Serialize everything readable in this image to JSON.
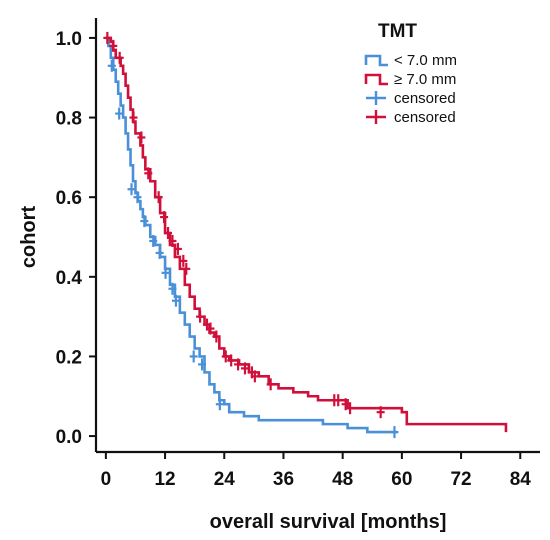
{
  "chart_data": {
    "type": "line",
    "subtype": "kaplan-meier",
    "xlabel": "overall survival [months]",
    "ylabel": "cohort",
    "xlim": [
      -2,
      88
    ],
    "ylim": [
      -0.04,
      1.04
    ],
    "xticks": [
      0,
      12,
      24,
      36,
      48,
      60,
      72,
      84
    ],
    "yticks": [
      0.0,
      0.2,
      0.4,
      0.6,
      0.8,
      1.0
    ],
    "xtick_labels": [
      "0",
      "12",
      "24",
      "36",
      "48",
      "60",
      "72",
      "84"
    ],
    "ytick_labels": [
      "0.0",
      "0.2",
      "0.4",
      "0.6",
      "0.8",
      "1.0"
    ],
    "grid": false,
    "legend": {
      "title": "TMT",
      "position": "top-right",
      "entries": [
        {
          "label": "< 7.0 mm",
          "color": "#4a90d9",
          "kind": "line"
        },
        {
          "label": "≥ 7.0 mm",
          "color": "#d0103a",
          "kind": "line"
        },
        {
          "label": "censored",
          "color": "#4a90d9",
          "kind": "marker"
        },
        {
          "label": "censored",
          "color": "#d0103a",
          "kind": "marker"
        }
      ]
    },
    "series": [
      {
        "name": "< 7.0 mm",
        "color": "#4a90d9",
        "steps": [
          [
            0,
            1.0
          ],
          [
            0.5,
            0.98
          ],
          [
            1,
            0.95
          ],
          [
            1.5,
            0.92
          ],
          [
            2,
            0.89
          ],
          [
            2.5,
            0.86
          ],
          [
            3,
            0.83
          ],
          [
            3.5,
            0.8
          ],
          [
            4,
            0.76
          ],
          [
            4.5,
            0.72
          ],
          [
            5,
            0.68
          ],
          [
            5.5,
            0.64
          ],
          [
            6,
            0.61
          ],
          [
            6.5,
            0.59
          ],
          [
            7,
            0.57
          ],
          [
            7.5,
            0.55
          ],
          [
            8,
            0.53
          ],
          [
            9,
            0.5
          ],
          [
            10,
            0.48
          ],
          [
            11,
            0.45
          ],
          [
            12,
            0.42
          ],
          [
            13,
            0.38
          ],
          [
            14,
            0.35
          ],
          [
            15,
            0.31
          ],
          [
            16,
            0.28
          ],
          [
            17,
            0.25
          ],
          [
            18,
            0.22
          ],
          [
            19,
            0.2
          ],
          [
            20,
            0.16
          ],
          [
            21,
            0.13
          ],
          [
            22,
            0.11
          ],
          [
            23,
            0.09
          ],
          [
            24,
            0.08
          ],
          [
            25,
            0.06
          ],
          [
            28,
            0.05
          ],
          [
            31,
            0.04
          ],
          [
            37,
            0.04
          ],
          [
            44,
            0.03
          ],
          [
            49,
            0.02
          ],
          [
            53,
            0.01
          ],
          [
            59,
            0.01
          ]
        ],
        "censored": [
          [
            1.2,
            0.93
          ],
          [
            2.7,
            0.81
          ],
          [
            5.2,
            0.62
          ],
          [
            6.4,
            0.6
          ],
          [
            7.8,
            0.54
          ],
          [
            9.6,
            0.49
          ],
          [
            10.9,
            0.46
          ],
          [
            12.1,
            0.41
          ],
          [
            13.5,
            0.37
          ],
          [
            14.2,
            0.34
          ],
          [
            17.8,
            0.2
          ],
          [
            19.5,
            0.18
          ],
          [
            23.1,
            0.08
          ],
          [
            58.5,
            0.01
          ]
        ]
      },
      {
        "name": "≥ 7.0 mm",
        "color": "#d0103a",
        "steps": [
          [
            0,
            1.0
          ],
          [
            1,
            0.99
          ],
          [
            1.5,
            0.97
          ],
          [
            2,
            0.95
          ],
          [
            3,
            0.93
          ],
          [
            3.5,
            0.91
          ],
          [
            4,
            0.88
          ],
          [
            4.5,
            0.85
          ],
          [
            5,
            0.82
          ],
          [
            5.5,
            0.79
          ],
          [
            6,
            0.76
          ],
          [
            7,
            0.73
          ],
          [
            7.5,
            0.7
          ],
          [
            8,
            0.67
          ],
          [
            9,
            0.64
          ],
          [
            10,
            0.6
          ],
          [
            11,
            0.56
          ],
          [
            12,
            0.51
          ],
          [
            13,
            0.48
          ],
          [
            14,
            0.45
          ],
          [
            15,
            0.42
          ],
          [
            16,
            0.38
          ],
          [
            17,
            0.35
          ],
          [
            18,
            0.32
          ],
          [
            19,
            0.3
          ],
          [
            20,
            0.28
          ],
          [
            21,
            0.26
          ],
          [
            22,
            0.25
          ],
          [
            23,
            0.22
          ],
          [
            24,
            0.2
          ],
          [
            25,
            0.19
          ],
          [
            27,
            0.18
          ],
          [
            29,
            0.16
          ],
          [
            31,
            0.15
          ],
          [
            33,
            0.13
          ],
          [
            35,
            0.12
          ],
          [
            38,
            0.11
          ],
          [
            41,
            0.1
          ],
          [
            43,
            0.09
          ],
          [
            47,
            0.09
          ],
          [
            49,
            0.07
          ],
          [
            60,
            0.06
          ],
          [
            61,
            0.03
          ],
          [
            70,
            0.03
          ],
          [
            81,
            0.03
          ],
          [
            81.1,
            0.01
          ]
        ],
        "censored": [
          [
            0.3,
            1.0
          ],
          [
            1.5,
            0.98
          ],
          [
            2.8,
            0.95
          ],
          [
            5.6,
            0.8
          ],
          [
            7.2,
            0.75
          ],
          [
            8.6,
            0.66
          ],
          [
            10.7,
            0.6
          ],
          [
            11.8,
            0.55
          ],
          [
            12.6,
            0.51
          ],
          [
            13.5,
            0.49
          ],
          [
            14.6,
            0.47
          ],
          [
            15.7,
            0.44
          ],
          [
            16.3,
            0.42
          ],
          [
            19.1,
            0.3
          ],
          [
            20.5,
            0.28
          ],
          [
            21.2,
            0.27
          ],
          [
            22.4,
            0.25
          ],
          [
            24.3,
            0.2
          ],
          [
            25.4,
            0.19
          ],
          [
            26.8,
            0.18
          ],
          [
            28.2,
            0.17
          ],
          [
            29.6,
            0.16
          ],
          [
            30.2,
            0.15
          ],
          [
            33.4,
            0.13
          ],
          [
            46.3,
            0.09
          ],
          [
            47.1,
            0.09
          ],
          [
            48.6,
            0.08
          ],
          [
            49.5,
            0.07
          ],
          [
            55.7,
            0.06
          ]
        ]
      }
    ]
  }
}
